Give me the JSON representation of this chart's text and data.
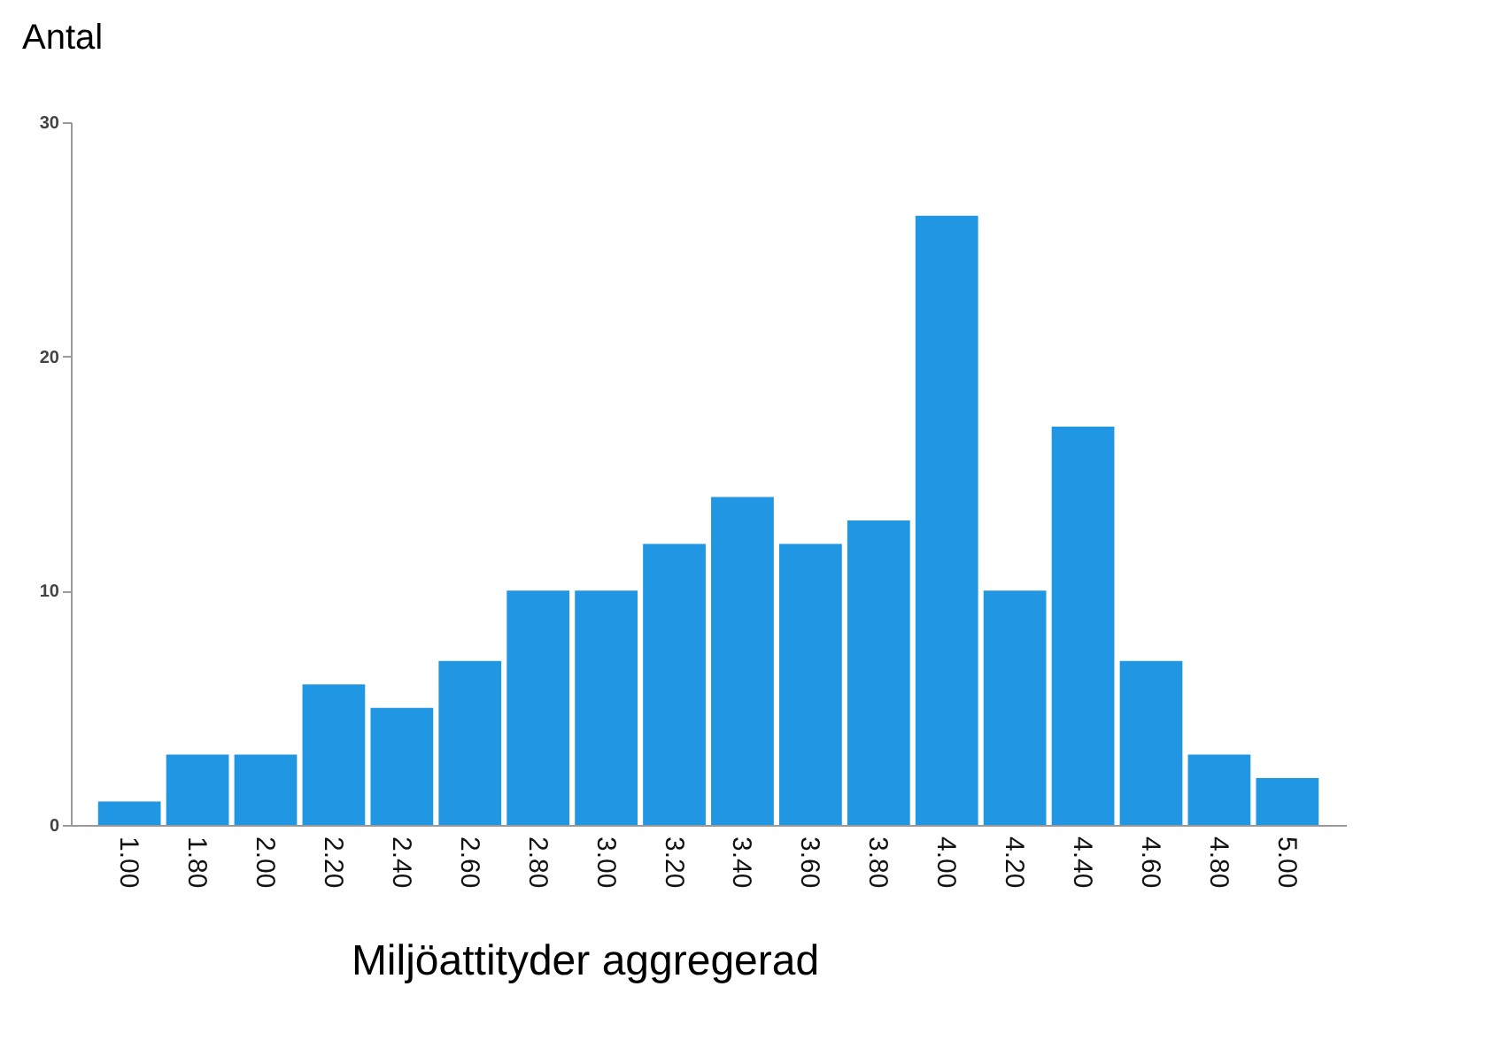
{
  "chart_data": {
    "type": "bar",
    "xlabel": "Miljöattityder aggregerad",
    "ylabel": "Antal",
    "categories": [
      "1.00",
      "1.80",
      "2.00",
      "2.20",
      "2.40",
      "2.60",
      "2.80",
      "3.00",
      "3.20",
      "3.40",
      "3.60",
      "3.80",
      "4.00",
      "4.20",
      "4.40",
      "4.60",
      "4.80",
      "5.00"
    ],
    "values": [
      1,
      3,
      3,
      6,
      5,
      7,
      10,
      10,
      12,
      14,
      12,
      13,
      26,
      10,
      17,
      7,
      3,
      2
    ],
    "color": "#2196e3",
    "ylim": [
      0,
      30
    ],
    "yticks": [
      0,
      10,
      20,
      30
    ],
    "grid": false
  }
}
